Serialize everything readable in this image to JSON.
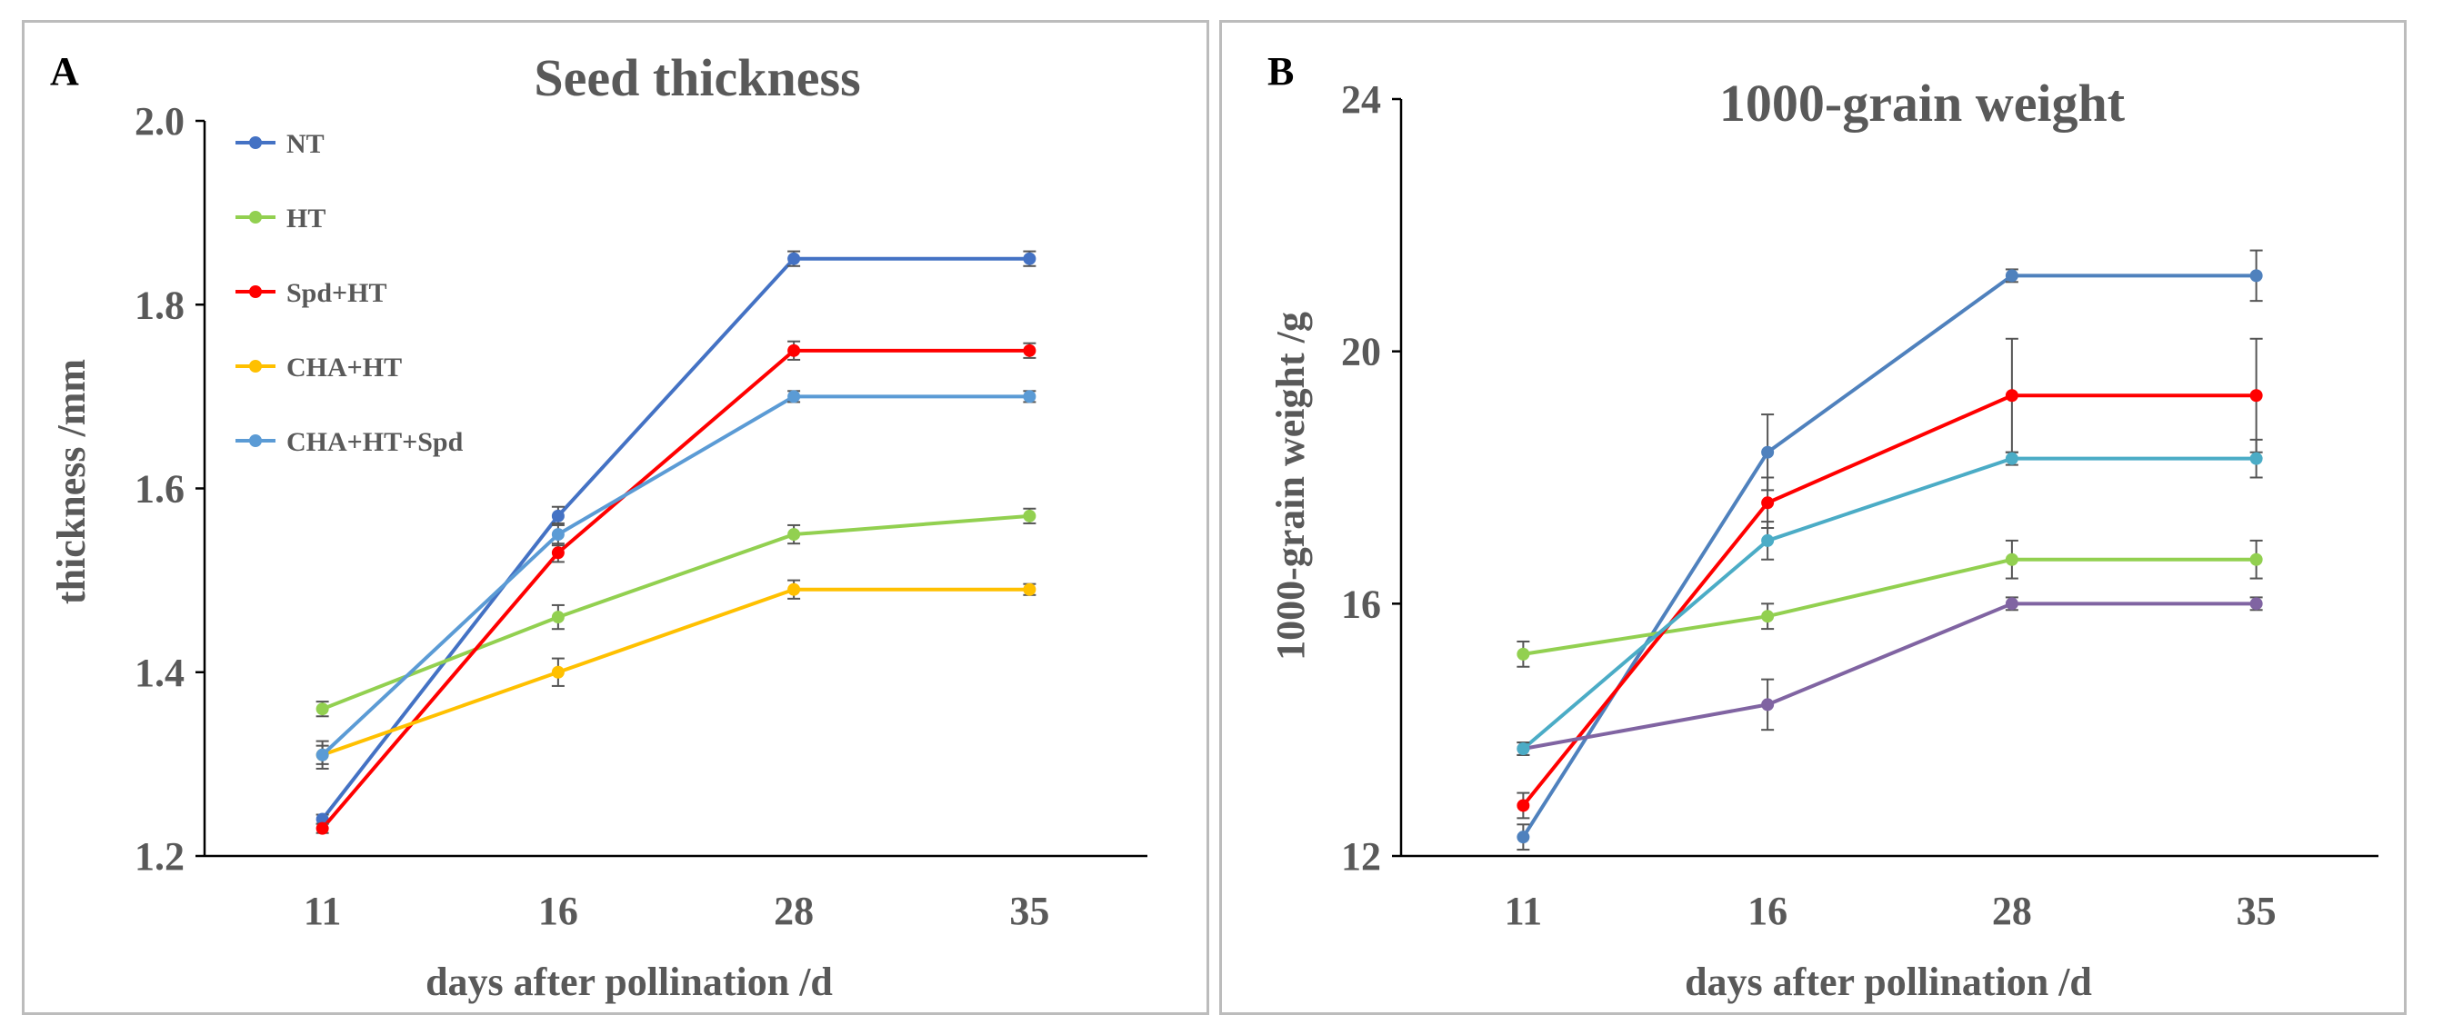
{
  "chart_data": [
    {
      "type": "line",
      "panel_label": "A",
      "title": "Seed thickness",
      "xlabel": "days after pollination /d",
      "ylabel": "thickness /mm",
      "categories": [
        "11",
        "16",
        "28",
        "35"
      ],
      "ylim": [
        1.2,
        2.0
      ],
      "yticks": [
        "1.2",
        "1.4",
        "1.6",
        "1.8",
        "2.0"
      ],
      "legend_position": "top-left",
      "series": [
        {
          "name": "NT",
          "color": "#4472C4",
          "values": [
            1.24,
            1.57,
            1.85,
            1.85
          ],
          "errors": [
            0.005,
            0.01,
            0.008,
            0.008
          ]
        },
        {
          "name": "HT",
          "color": "#92D050",
          "values": [
            1.36,
            1.46,
            1.55,
            1.57
          ],
          "errors": [
            0.008,
            0.013,
            0.01,
            0.008
          ]
        },
        {
          "name": "Spd+HT",
          "color": "#FF0000",
          "values": [
            1.23,
            1.53,
            1.75,
            1.75
          ],
          "errors": [
            0.005,
            0.01,
            0.01,
            0.008
          ]
        },
        {
          "name": "CHA+HT",
          "color": "#FFC000",
          "values": [
            1.31,
            1.4,
            1.49,
            1.49
          ],
          "errors": [
            0.01,
            0.015,
            0.01,
            0.006
          ]
        },
        {
          "name": "CHA+HT+Spd",
          "color": "#5B9BD5",
          "values": [
            1.31,
            1.55,
            1.7,
            1.7
          ],
          "errors": [
            0.015,
            0.012,
            0.006,
            0.006
          ]
        }
      ]
    },
    {
      "type": "line",
      "panel_label": "B",
      "title": "1000-grain weight",
      "xlabel": "days after pollination /d",
      "ylabel": "1000-grain weight /g",
      "categories": [
        "11",
        "16",
        "28",
        "35"
      ],
      "ylim": [
        12,
        24
      ],
      "yticks": [
        "12",
        "16",
        "20",
        "24"
      ],
      "series": [
        {
          "name": "NT",
          "color": "#4F81BD",
          "values": [
            12.3,
            18.4,
            21.2,
            21.2
          ],
          "errors": [
            0.2,
            0.6,
            0.1,
            0.4
          ]
        },
        {
          "name": "HT",
          "color": "#92D050",
          "values": [
            15.2,
            15.8,
            16.7,
            16.7
          ],
          "errors": [
            0.2,
            0.2,
            0.3,
            0.3
          ]
        },
        {
          "name": "Spd+HT",
          "color": "#FF0000",
          "values": [
            12.8,
            17.6,
            19.3,
            19.3
          ],
          "errors": [
            0.2,
            0.4,
            0.9,
            0.9
          ]
        },
        {
          "name": "CHA+HT",
          "color": "#8064A2",
          "values": [
            13.7,
            14.4,
            16.0,
            16.0
          ],
          "errors": [
            0.1,
            0.4,
            0.1,
            0.1
          ]
        },
        {
          "name": "CHA+HT+Spd",
          "color": "#4BACC6",
          "values": [
            13.7,
            17.0,
            18.3,
            18.3
          ],
          "errors": [
            0.1,
            0.3,
            0.1,
            0.3
          ]
        }
      ]
    }
  ]
}
